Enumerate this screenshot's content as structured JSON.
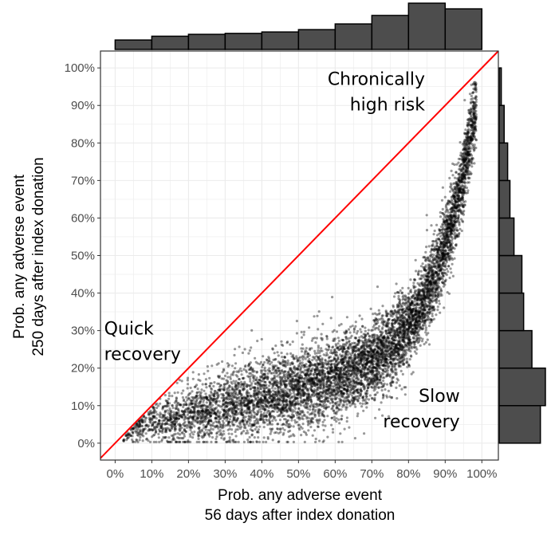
{
  "chart_data": {
    "type": "scatter",
    "title": "",
    "xlabel": [
      "Prob. any adverse event",
      "56 days after index donation"
    ],
    "ylabel": [
      "Prob. any adverse event",
      "250 days after index donation"
    ],
    "xlim": [
      -0.04,
      1.045
    ],
    "ylim": [
      -0.045,
      1.045
    ],
    "x_ticks": [
      0,
      0.1,
      0.2,
      0.3,
      0.4,
      0.5,
      0.6,
      0.7,
      0.8,
      0.9,
      1.0
    ],
    "x_tick_labels": [
      "0%",
      "10%",
      "20%",
      "30%",
      "40%",
      "50%",
      "60%",
      "70%",
      "80%",
      "90%",
      "100%"
    ],
    "y_ticks": [
      0,
      0.1,
      0.2,
      0.3,
      0.4,
      0.5,
      0.6,
      0.7,
      0.8,
      0.9,
      1.0
    ],
    "y_tick_labels": [
      "0%",
      "10%",
      "20%",
      "30%",
      "40%",
      "50%",
      "60%",
      "70%",
      "80%",
      "90%",
      "100%"
    ],
    "grid": true,
    "reference_line": {
      "x": [
        -0.04,
        1.045
      ],
      "y": [
        -0.04,
        1.045
      ],
      "color": "#ff0000"
    },
    "annotations": [
      {
        "lines": [
          "Chronically",
          "high risk"
        ],
        "x": 0.845,
        "y": 0.955,
        "anchor": "end"
      },
      {
        "lines": [
          "Quick",
          "recovery"
        ],
        "x": -0.03,
        "y": 0.29,
        "anchor": "start"
      },
      {
        "lines": [
          "Slow",
          "recovery"
        ],
        "x": 0.94,
        "y": 0.11,
        "anchor": "end"
      }
    ],
    "point_color": "#000000",
    "point_opacity": 0.4,
    "point_count": 7500,
    "x_marginal_histogram": {
      "bins": [
        [
          0.0,
          0.1
        ],
        [
          0.1,
          0.2
        ],
        [
          0.2,
          0.3
        ],
        [
          0.3,
          0.4
        ],
        [
          0.4,
          0.5
        ],
        [
          0.5,
          0.6
        ],
        [
          0.6,
          0.7
        ],
        [
          0.7,
          0.8
        ],
        [
          0.8,
          0.9
        ],
        [
          0.9,
          1.0
        ]
      ],
      "counts": [
        200,
        280,
        320,
        340,
        370,
        420,
        540,
        720,
        980,
        860
      ],
      "fill": "#4d4d4d"
    },
    "y_marginal_histogram": {
      "bins": [
        [
          0.0,
          0.1
        ],
        [
          0.1,
          0.2
        ],
        [
          0.2,
          0.3
        ],
        [
          0.3,
          0.4
        ],
        [
          0.4,
          0.5
        ],
        [
          0.5,
          0.6
        ],
        [
          0.6,
          0.7
        ],
        [
          0.7,
          0.8
        ],
        [
          0.8,
          0.9
        ],
        [
          0.9,
          1.0
        ]
      ],
      "counts": [
        1070,
        1200,
        850,
        635,
        590,
        385,
        280,
        220,
        130,
        55
      ],
      "fill": "#4d4d4d"
    }
  }
}
